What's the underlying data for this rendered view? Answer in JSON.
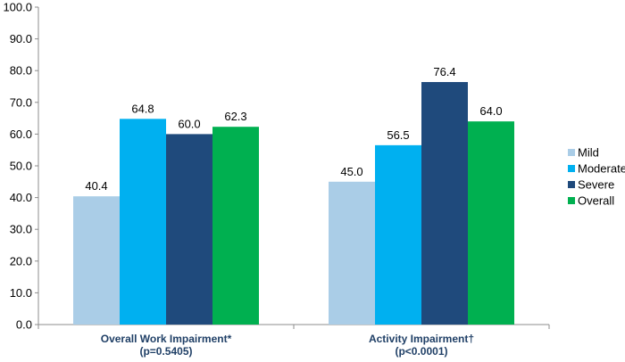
{
  "chart_data": {
    "type": "bar",
    "categories": [
      [
        "Overall Work Impairment*",
        "(p=0.5405)"
      ],
      [
        "Activity Impairment†",
        "(p<0.0001)"
      ]
    ],
    "series": [
      {
        "name": "Mild",
        "color": "#aacde7",
        "values": [
          40.4,
          45.0
        ],
        "labels": [
          "40.4",
          "45.0"
        ]
      },
      {
        "name": "Moderate",
        "color": "#00b0f0",
        "values": [
          64.8,
          56.5
        ],
        "labels": [
          "64.8",
          "56.5"
        ]
      },
      {
        "name": "Severe",
        "color": "#1f4a7c",
        "values": [
          60.0,
          76.4
        ],
        "labels": [
          "60.0",
          "76.4"
        ]
      },
      {
        "name": "Overall",
        "color": "#00b050",
        "values": [
          62.3,
          64.0
        ],
        "labels": [
          "62.3",
          "64.0"
        ]
      }
    ],
    "yticks": [
      "0.0",
      "10.0",
      "20.0",
      "30.0",
      "40.0",
      "50.0",
      "60.0",
      "70.0",
      "80.0",
      "90.0",
      "100.0"
    ],
    "ylim": [
      0,
      100
    ],
    "grid": false,
    "legend_position": "right"
  }
}
